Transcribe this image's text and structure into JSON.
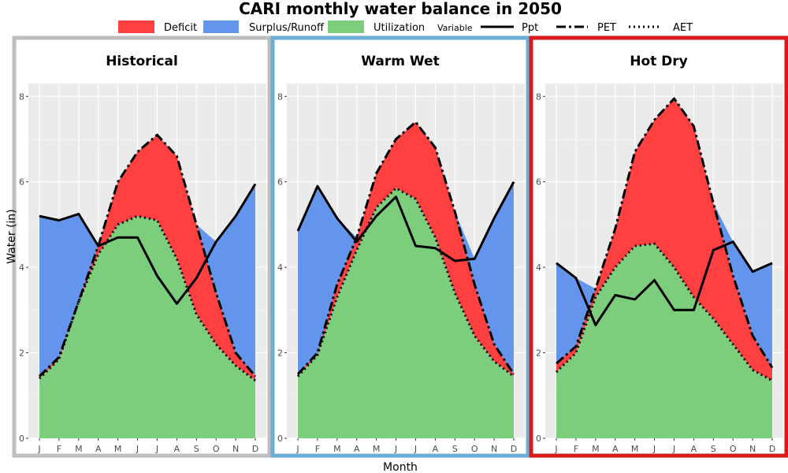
{
  "chart_data": {
    "type": "area",
    "title": "CARI monthly water balance in 2050",
    "xlabel": "Month",
    "ylabel": "Water (in)",
    "ylim": [
      0,
      8.3
    ],
    "yticks": [
      0,
      2,
      4,
      6,
      8
    ],
    "grid": true,
    "legend_position": "top",
    "categories": [
      "J",
      "F",
      "M",
      "A",
      "M",
      "J",
      "J",
      "A",
      "S",
      "O",
      "N",
      "D"
    ],
    "fill_legend": [
      {
        "name": "Deficit",
        "color": "#ff4040"
      },
      {
        "name": "Surplus/Runoff",
        "color": "#6495ed"
      },
      {
        "name": "Utilization",
        "color": "#7ccd7c"
      }
    ],
    "line_legend": {
      "title": "Variable",
      "items": [
        {
          "name": "Ppt",
          "dash": "solid"
        },
        {
          "name": "PET",
          "dash": "dashdot"
        },
        {
          "name": "AET",
          "dash": "dotted"
        }
      ]
    },
    "panels": [
      {
        "name": "Historical",
        "border_color": "#bebebe",
        "series": [
          {
            "name": "Ppt",
            "values": [
              5.2,
              5.1,
              5.25,
              4.5,
              4.7,
              4.7,
              3.8,
              3.15,
              3.75,
              4.6,
              5.2,
              5.95
            ]
          },
          {
            "name": "PET",
            "values": [
              1.45,
              1.9,
              3.2,
              4.5,
              6.0,
              6.7,
              7.1,
              6.6,
              5.0,
              3.4,
              2.0,
              1.45
            ]
          },
          {
            "name": "AET",
            "values": [
              1.4,
              1.85,
              3.2,
              4.3,
              5.0,
              5.2,
              5.1,
              4.2,
              2.9,
              2.2,
              1.7,
              1.35
            ]
          }
        ]
      },
      {
        "name": "Warm Wet",
        "border_color": "#6baed6",
        "series": [
          {
            "name": "Ppt",
            "values": [
              4.85,
              5.9,
              5.15,
              4.6,
              5.2,
              5.65,
              4.5,
              4.45,
              4.15,
              4.2,
              5.15,
              6.0
            ]
          },
          {
            "name": "PET",
            "values": [
              1.5,
              2.0,
              3.6,
              4.7,
              6.2,
              7.0,
              7.4,
              6.8,
              5.3,
              3.6,
              2.2,
              1.5
            ]
          },
          {
            "name": "AET",
            "values": [
              1.45,
              1.95,
              3.3,
              4.4,
              5.4,
              5.85,
              5.6,
              4.7,
              3.4,
              2.4,
              1.8,
              1.45
            ]
          }
        ]
      },
      {
        "name": "Hot Dry",
        "border_color": "#d7191c",
        "series": [
          {
            "name": "Ppt",
            "values": [
              4.1,
              3.75,
              2.65,
              3.35,
              3.25,
              3.7,
              3.0,
              3.0,
              4.4,
              4.6,
              3.9,
              4.1
            ]
          },
          {
            "name": "PET",
            "values": [
              1.75,
              2.15,
              3.5,
              4.9,
              6.7,
              7.45,
              7.95,
              7.3,
              5.5,
              3.8,
              2.4,
              1.65
            ]
          },
          {
            "name": "AET",
            "values": [
              1.55,
              2.0,
              3.3,
              4.0,
              4.5,
              4.55,
              4.0,
              3.3,
              2.8,
              2.2,
              1.6,
              1.35
            ]
          }
        ]
      }
    ]
  }
}
